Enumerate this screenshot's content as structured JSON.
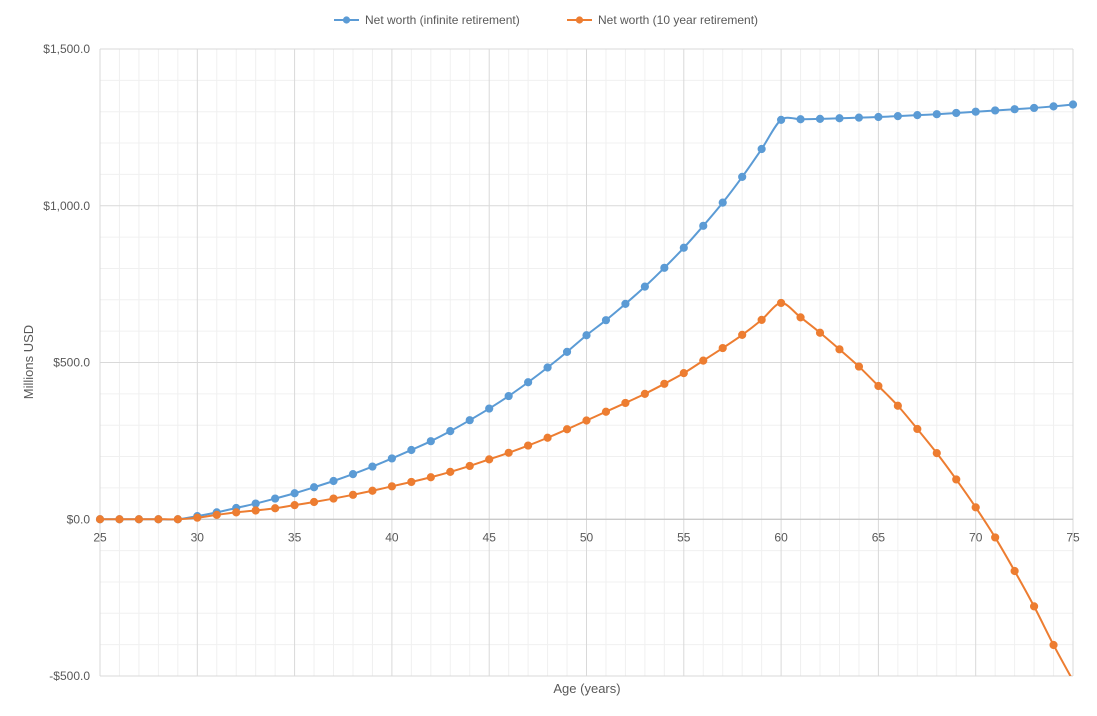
{
  "chart_data": {
    "type": "line",
    "title": "",
    "xlabel": "Age (years)",
    "ylabel": "Millions USD",
    "xlim": [
      25,
      75
    ],
    "ylim": [
      -500,
      1500
    ],
    "x_ticks": [
      25,
      30,
      35,
      40,
      45,
      50,
      55,
      60,
      65,
      70,
      75
    ],
    "x_tick_labels": [
      "25",
      "30",
      "35",
      "40",
      "45",
      "50",
      "55",
      "60",
      "65",
      "70",
      "75"
    ],
    "y_ticks": [
      -500,
      0,
      500,
      1000,
      1500
    ],
    "y_tick_labels": [
      "-$500.0",
      "$0.0",
      "$500.0",
      "$1,000.0",
      "$1,500.0"
    ],
    "grid": true,
    "legend_position": "top-center",
    "x": [
      25,
      26,
      27,
      28,
      29,
      30,
      31,
      32,
      33,
      34,
      35,
      36,
      37,
      38,
      39,
      40,
      41,
      42,
      43,
      44,
      45,
      46,
      47,
      48,
      49,
      50,
      51,
      52,
      53,
      54,
      55,
      56,
      57,
      58,
      59,
      60,
      61,
      62,
      63,
      64,
      65,
      66,
      67,
      68,
      69,
      70,
      71,
      72,
      73,
      74,
      75
    ],
    "series": [
      {
        "name": "Net worth (infinite retirement)",
        "color": "#5b9bd5",
        "values": [
          0,
          0,
          0,
          0,
          0,
          10,
          22,
          36,
          50,
          66,
          83,
          102,
          122,
          144,
          168,
          194,
          221,
          249,
          281,
          316,
          353,
          393,
          437,
          484,
          534,
          587,
          635,
          687,
          742,
          802,
          866,
          936,
          1010,
          1092,
          1181,
          1274,
          1276,
          1277,
          1279,
          1281,
          1283,
          1286,
          1289,
          1292,
          1296,
          1300,
          1304,
          1308,
          1312,
          1317,
          1323
        ]
      },
      {
        "name": "Net worth (10 year retirement)",
        "color": "#ed7d31",
        "values": [
          0,
          0,
          0,
          0,
          0,
          5,
          14,
          22,
          28,
          35,
          45,
          55,
          66,
          78,
          91,
          105,
          119,
          134,
          151,
          170,
          191,
          212,
          235,
          260,
          287,
          315,
          343,
          371,
          400,
          432,
          466,
          506,
          546,
          588,
          636,
          690,
          644,
          595,
          542,
          487,
          425,
          362,
          288,
          211,
          127,
          38,
          -58,
          -165,
          -278,
          -401,
          -515
        ]
      }
    ]
  }
}
